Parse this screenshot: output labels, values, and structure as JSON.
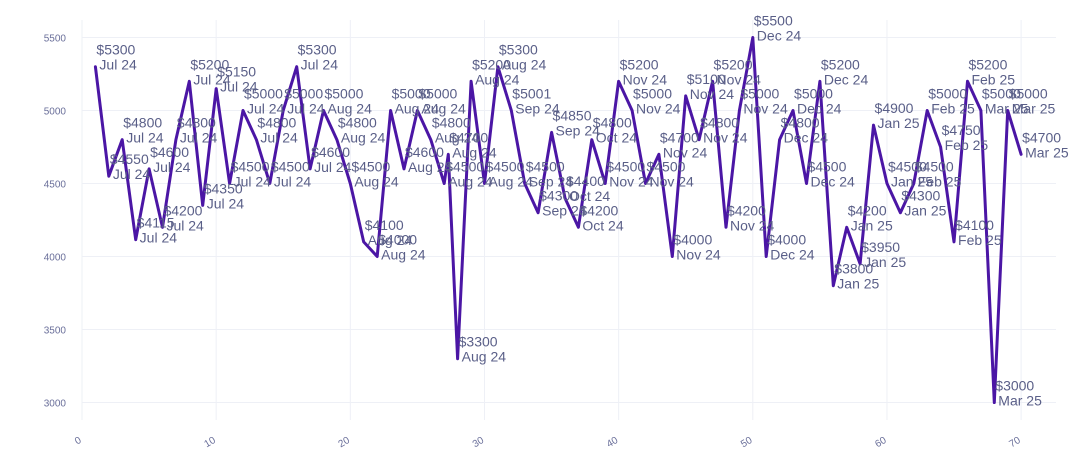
{
  "chart_data": {
    "type": "line",
    "title": "",
    "xlabel": "",
    "ylabel": "",
    "xlim": [
      0,
      72.6
    ],
    "ylim": [
      2880,
      5620
    ],
    "xticks": [
      0,
      10,
      20,
      30,
      40,
      50,
      60,
      70
    ],
    "yticks": [
      3000,
      3500,
      4000,
      4500,
      5000,
      5500
    ],
    "grid": true,
    "legend": "none",
    "color": "#4b16a5",
    "points": [
      {
        "x": 1,
        "y": 5300,
        "price": "$5300",
        "month": "Jul 24"
      },
      {
        "x": 2,
        "y": 4550,
        "price": "$4550",
        "month": "Jul 24"
      },
      {
        "x": 3,
        "y": 4800,
        "price": "$4800",
        "month": "Jul 24"
      },
      {
        "x": 4,
        "y": 4115,
        "price": "$4115",
        "month": "Jul 24"
      },
      {
        "x": 5,
        "y": 4600,
        "price": "$4600",
        "month": "Jul 24"
      },
      {
        "x": 6,
        "y": 4200,
        "price": "$4200",
        "month": "Jul 24"
      },
      {
        "x": 7,
        "y": 4800,
        "price": "$4800",
        "month": "Jul 24"
      },
      {
        "x": 8,
        "y": 5200,
        "price": "$5200",
        "month": "Jul 24"
      },
      {
        "x": 9,
        "y": 4350,
        "price": "$4350",
        "month": "Jul 24"
      },
      {
        "x": 10,
        "y": 5150,
        "price": "$5150",
        "month": "Jul 24"
      },
      {
        "x": 11,
        "y": 4500,
        "price": "$4500",
        "month": "Jul 24"
      },
      {
        "x": 12,
        "y": 5000,
        "price": "$5000",
        "month": "Jul 24"
      },
      {
        "x": 13,
        "y": 4800,
        "price": "$4800",
        "month": "Jul 24"
      },
      {
        "x": 14,
        "y": 4500,
        "price": "$4500",
        "month": "Jul 24"
      },
      {
        "x": 15,
        "y": 5000,
        "price": "$5000",
        "month": "Jul 24"
      },
      {
        "x": 16,
        "y": 5300,
        "price": "$5300",
        "month": "Jul 24"
      },
      {
        "x": 17,
        "y": 4600,
        "price": "$4600",
        "month": "Jul 24"
      },
      {
        "x": 18,
        "y": 5000,
        "price": "$5000",
        "month": "Aug 24"
      },
      {
        "x": 19,
        "y": 4800,
        "price": "$4800",
        "month": "Aug 24"
      },
      {
        "x": 20,
        "y": 4500,
        "price": "$4500",
        "month": "Aug 24"
      },
      {
        "x": 21,
        "y": 4100,
        "price": "$4100",
        "month": "Aug 24"
      },
      {
        "x": 22,
        "y": 4000,
        "price": "$4000",
        "month": "Aug 24"
      },
      {
        "x": 23,
        "y": 5000,
        "price": "$5000",
        "month": "Aug 24"
      },
      {
        "x": 24,
        "y": 4600,
        "price": "$4600",
        "month": "Aug 24"
      },
      {
        "x": 25,
        "y": 5000,
        "price": "$5000",
        "month": "Aug 24"
      },
      {
        "x": 26,
        "y": 4800,
        "price": "$4800",
        "month": "Aug 24"
      },
      {
        "x": 27,
        "y": 4500,
        "price": "$4500",
        "month": "Aug 24"
      },
      {
        "x": 27.3,
        "y": 4700,
        "price": "$4700",
        "month": "Aug 24"
      },
      {
        "x": 28,
        "y": 3300,
        "price": "$3300",
        "month": "Aug 24"
      },
      {
        "x": 29,
        "y": 5200,
        "price": "$5200",
        "month": "Aug 24"
      },
      {
        "x": 30,
        "y": 4500,
        "price": "$4500",
        "month": "Aug 24"
      },
      {
        "x": 31,
        "y": 5300,
        "price": "$5300",
        "month": "Aug 24"
      },
      {
        "x": 32,
        "y": 5001,
        "price": "$5001",
        "month": "Sep 24"
      },
      {
        "x": 33,
        "y": 4500,
        "price": "$4500",
        "month": "Sep 24"
      },
      {
        "x": 34,
        "y": 4300,
        "price": "$4300",
        "month": "Sep 24"
      },
      {
        "x": 35,
        "y": 4850,
        "price": "$4850",
        "month": "Sep 24"
      },
      {
        "x": 36,
        "y": 4400,
        "price": "$4400",
        "month": "Oct 24"
      },
      {
        "x": 37,
        "y": 4200,
        "price": "$4200",
        "month": "Oct 24"
      },
      {
        "x": 38,
        "y": 4800,
        "price": "$4800",
        "month": "Oct 24"
      },
      {
        "x": 39,
        "y": 4500,
        "price": "$4500",
        "month": "Nov 24"
      },
      {
        "x": 40,
        "y": 5200,
        "price": "$5200",
        "month": "Nov 24"
      },
      {
        "x": 41,
        "y": 5000,
        "price": "$5000",
        "month": "Nov 24"
      },
      {
        "x": 42,
        "y": 4500,
        "price": "$4500",
        "month": "Nov 24"
      },
      {
        "x": 43,
        "y": 4700,
        "price": "$4700",
        "month": "Nov 24"
      },
      {
        "x": 44,
        "y": 4000,
        "price": "$4000",
        "month": "Nov 24"
      },
      {
        "x": 45,
        "y": 5100,
        "price": "$5100",
        "month": "Nov 24"
      },
      {
        "x": 46,
        "y": 4800,
        "price": "$4800",
        "month": "Nov 24"
      },
      {
        "x": 47,
        "y": 5200,
        "price": "$5200",
        "month": "Nov 24"
      },
      {
        "x": 48,
        "y": 4200,
        "price": "$4200",
        "month": "Nov 24"
      },
      {
        "x": 49,
        "y": 5000,
        "price": "$5000",
        "month": "Nov 24"
      },
      {
        "x": 50,
        "y": 5500,
        "price": "$5500",
        "month": "Dec 24"
      },
      {
        "x": 51,
        "y": 4000,
        "price": "$4000",
        "month": "Dec 24"
      },
      {
        "x": 52,
        "y": 4800,
        "price": "$4800",
        "month": "Dec 24"
      },
      {
        "x": 53,
        "y": 5000,
        "price": "$5000",
        "month": "Dec 24"
      },
      {
        "x": 54,
        "y": 4500,
        "price": "$4500",
        "month": "Dec 24"
      },
      {
        "x": 55,
        "y": 5200,
        "price": "$5200",
        "month": "Dec 24"
      },
      {
        "x": 56,
        "y": 3800,
        "price": "$3800",
        "month": "Jan 25"
      },
      {
        "x": 57,
        "y": 4200,
        "price": "$4200",
        "month": "Jan 25"
      },
      {
        "x": 58,
        "y": 3950,
        "price": "$3950",
        "month": "Jan 25"
      },
      {
        "x": 59,
        "y": 4900,
        "price": "$4900",
        "month": "Jan 25"
      },
      {
        "x": 60,
        "y": 4500,
        "price": "$4500",
        "month": "Jan 25"
      },
      {
        "x": 61,
        "y": 4300,
        "price": "$4300",
        "month": "Jan 25"
      },
      {
        "x": 62,
        "y": 4500,
        "price": "$4500",
        "month": "Feb 25"
      },
      {
        "x": 63,
        "y": 5000,
        "price": "$5000",
        "month": "Feb 25"
      },
      {
        "x": 64,
        "y": 4750,
        "price": "$4750",
        "month": "Feb 25"
      },
      {
        "x": 65,
        "y": 4100,
        "price": "$4100",
        "month": "Feb 25"
      },
      {
        "x": 66,
        "y": 5200,
        "price": "$5200",
        "month": "Feb 25"
      },
      {
        "x": 67,
        "y": 5000,
        "price": "$5000",
        "month": "Mar 25"
      },
      {
        "x": 68,
        "y": 3000,
        "price": "$3000",
        "month": "Mar 25"
      },
      {
        "x": 69,
        "y": 5000,
        "price": "$5000",
        "month": "Mar 25"
      },
      {
        "x": 70,
        "y": 4700,
        "price": "$4700",
        "month": "Mar 25"
      }
    ]
  }
}
